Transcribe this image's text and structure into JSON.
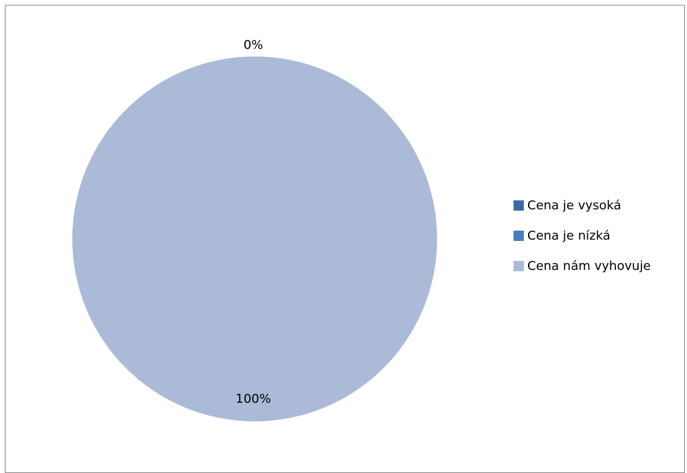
{
  "chart_data": {
    "type": "pie",
    "categories": [
      "Cena je vysoká",
      "Cena je nízká",
      "Cena nám vyhovuje"
    ],
    "values": [
      0,
      0,
      100
    ],
    "data_labels": [
      "0%",
      "",
      "100%"
    ],
    "colors": [
      "#3E6AA3",
      "#4A7EBB",
      "#AABAD7"
    ],
    "legend_position": "right"
  }
}
